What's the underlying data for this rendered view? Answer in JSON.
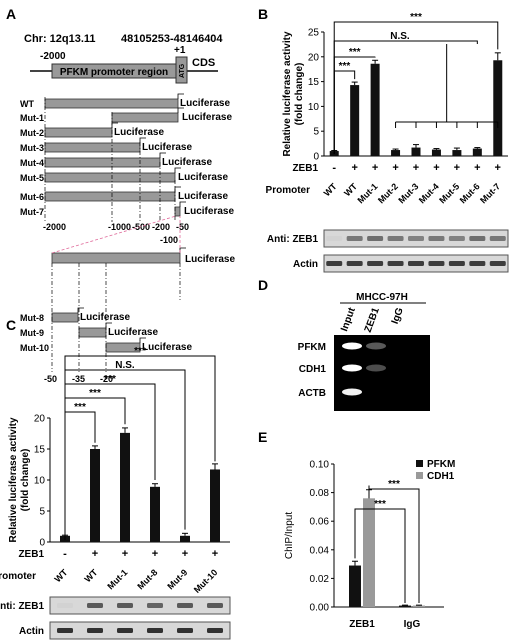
{
  "panels": {
    "a": "A",
    "b": "B",
    "c": "C",
    "d": "D",
    "e": "E"
  },
  "panel_a": {
    "chr": "Chr: 12q13.11",
    "coords": "48105253-48146404",
    "pos_start": "-2000",
    "pos_plus1": "+1",
    "promoter_label": "PFKM promoter region",
    "atg": "ATG",
    "cds": "CDS",
    "luciferase": "Luciferase",
    "constructs": [
      "WT",
      "Mut-1",
      "Mut-2",
      "Mut-3",
      "Mut-4",
      "Mut-5",
      "Mut-6",
      "Mut-7",
      "Mut-8",
      "Mut-9",
      "Mut-10"
    ],
    "axis1": [
      "-2000",
      "-1000",
      "-500",
      "-200",
      "-50"
    ],
    "axis1b": "-100",
    "axis2": [
      "-50",
      "-35",
      "-20"
    ]
  },
  "panel_b": {
    "ylabel": "Relative luciferase activity",
    "ylabel2": "(fold change)",
    "zeb1_label": "ZEB1",
    "promoter_label": "Promoter",
    "ns": "N.S.",
    "stars": "***",
    "blot_zeb1": "Anti:  ZEB1",
    "blot_actin": "Actin"
  },
  "panel_c": {
    "ylabel": "Relative luciferase activity",
    "ylabel2": "(fold change)",
    "zeb1_label": "ZEB1",
    "promoter_label": "Promoter",
    "ns": "N.S.",
    "stars": "***",
    "blot_zeb1": "Anti:  ZEB1",
    "blot_actin": "Actin"
  },
  "panel_d": {
    "cell_line": "MHCC-97H",
    "lanes": [
      "Input",
      "ZEB1",
      "IgG"
    ],
    "genes": [
      "PFKM",
      "CDH1",
      "ACTB"
    ]
  },
  "panel_e": {
    "stars": "***"
  },
  "chart_data": [
    {
      "type": "bar",
      "panel": "B",
      "ylabel": "Relative luciferase activity (fold change)",
      "ylim": [
        0,
        25
      ],
      "yticks": [
        0,
        5,
        10,
        15,
        20,
        25
      ],
      "zeb1": [
        "-",
        "+",
        "+",
        "+",
        "+",
        "+",
        "+",
        "+",
        "+"
      ],
      "categories": [
        "WT",
        "WT",
        "Mut-1",
        "Mut-2",
        "Mut-3",
        "Mut-4",
        "Mut-5",
        "Mut-6",
        "Mut-7"
      ],
      "values": [
        1.0,
        14.3,
        18.6,
        1.2,
        1.7,
        1.3,
        1.2,
        1.5,
        19.3
      ],
      "errors": [
        0.1,
        0.6,
        0.7,
        0.2,
        0.6,
        0.2,
        0.4,
        0.2,
        1.5
      ]
    },
    {
      "type": "bar",
      "panel": "C",
      "ylabel": "Relative luciferase activity (fold change)",
      "ylim": [
        0,
        20
      ],
      "yticks": [
        0,
        5,
        10,
        15,
        20
      ],
      "zeb1": [
        "-",
        "+",
        "+",
        "+",
        "+",
        "+"
      ],
      "categories": [
        "WT",
        "WT",
        "Mut-1",
        "Mut-8",
        "Mut-9",
        "Mut-10"
      ],
      "values": [
        1.0,
        15.0,
        17.6,
        8.9,
        1.0,
        11.7
      ],
      "errors": [
        0.1,
        0.5,
        0.8,
        0.5,
        0.4,
        0.9
      ]
    },
    {
      "type": "bar",
      "panel": "E",
      "ylabel": "ChIP/Input",
      "ylim": [
        0,
        0.1
      ],
      "yticks": [
        "0.00",
        "0.02",
        "0.04",
        "0.06",
        "0.08",
        "0.10"
      ],
      "categories": [
        "ZEB1",
        "IgG"
      ],
      "series": [
        {
          "name": "PFKM",
          "values": [
            0.029,
            0.001
          ],
          "errors": [
            0.003,
            0.0003
          ],
          "color": "#111111"
        },
        {
          "name": "CDH1",
          "values": [
            0.076,
            0.001
          ],
          "errors": [
            0.006,
            0.0003
          ],
          "color": "#9a9a9a"
        }
      ]
    }
  ]
}
